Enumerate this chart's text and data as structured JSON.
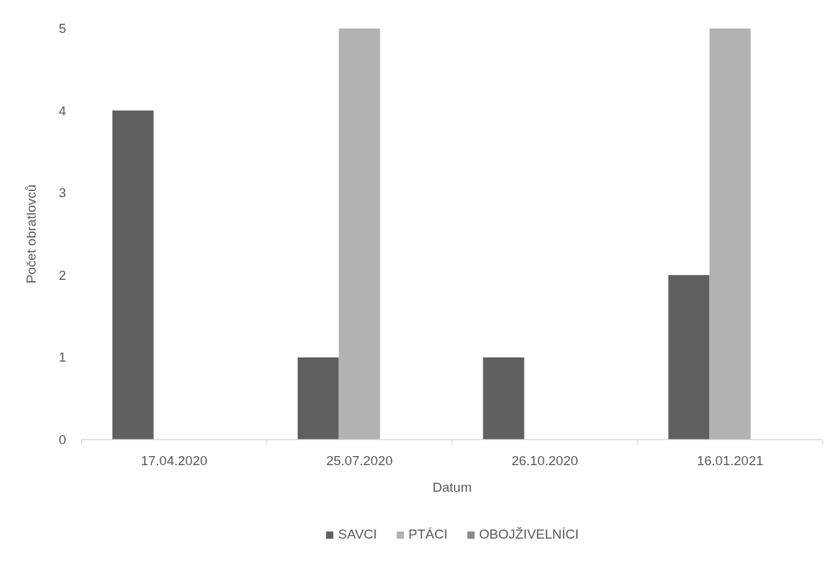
{
  "chart_data": {
    "type": "bar",
    "xlabel": "Datum",
    "ylabel": "Počet obratlovců",
    "categories": [
      "17.04.2020",
      "25.07.2020",
      "26.10.2020",
      "16.01.2021"
    ],
    "series": [
      {
        "name": "SAVCI",
        "color": "#5f5f5f",
        "values": [
          4,
          1,
          1,
          2
        ]
      },
      {
        "name": "PTÁCI",
        "color": "#b2b2b2",
        "values": [
          null,
          5,
          null,
          5
        ]
      },
      {
        "name": "OBOJŽIVELNÍCI",
        "color": "#8a8a8a",
        "values": [
          null,
          null,
          null,
          null
        ]
      }
    ],
    "ylim": [
      0,
      5
    ],
    "yticks": [
      0,
      1,
      2,
      3,
      4,
      5
    ],
    "grid": false,
    "legend": "bottom"
  }
}
